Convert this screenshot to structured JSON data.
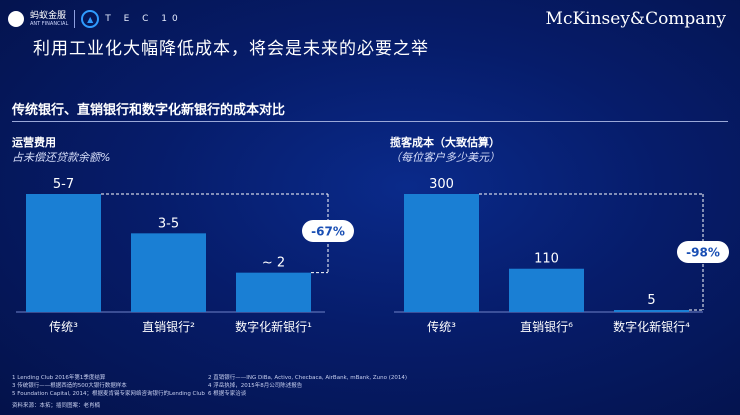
{
  "header": {
    "ant_logo_text": "蚂蚁金服",
    "ant_logo_sub": "ANT FINANCIAL",
    "tec_logo_text": "T E C 10",
    "brand": "McKinsey&Company"
  },
  "title": "利用工业化大幅降低成本，将会是未来的必要之举",
  "subheading": "传统银行、直销银行和数字化新银行的成本对比",
  "chart_data": [
    {
      "type": "bar",
      "title": "运营费用",
      "subtitle": "占未偿还贷款余额%",
      "categories": [
        "传统³",
        "直销银行²",
        "数字化新银行¹"
      ],
      "values": [
        6,
        4,
        2
      ],
      "value_labels": [
        "5-7",
        "3-5",
        "~ 2"
      ],
      "annotation": "-67%",
      "color": "#1a7fd4"
    },
    {
      "type": "bar",
      "title": "揽客成本（大致估算）",
      "subtitle": "（每位客户多少美元）",
      "categories": [
        "传统³",
        "直销银行⁶",
        "数字化新银行⁴"
      ],
      "values": [
        300,
        110,
        5
      ],
      "value_labels": [
        "300",
        "110",
        "5"
      ],
      "annotation": "-98%",
      "color": "#1a7fd4"
    }
  ],
  "footnotes": {
    "f1": "1 Lending Club 2016年第1季度结算",
    "f2": "2 直销银行——ING DiBa, Activo, Checbaca, AirBank, mBank, Zuno (2014)",
    "f3": "3 传统银行——根据西造的500大银行数据样本",
    "f4": "4 浮岳执掉，2015年8月公司陈述报告",
    "f5": "5 Foundation Capital, 2014；根据麦肯锡专家网络咨询银行的Lending Club",
    "f6": "6 根据专家洽谈",
    "source": "资料来源：本拓；插同图案：老肖楠"
  }
}
